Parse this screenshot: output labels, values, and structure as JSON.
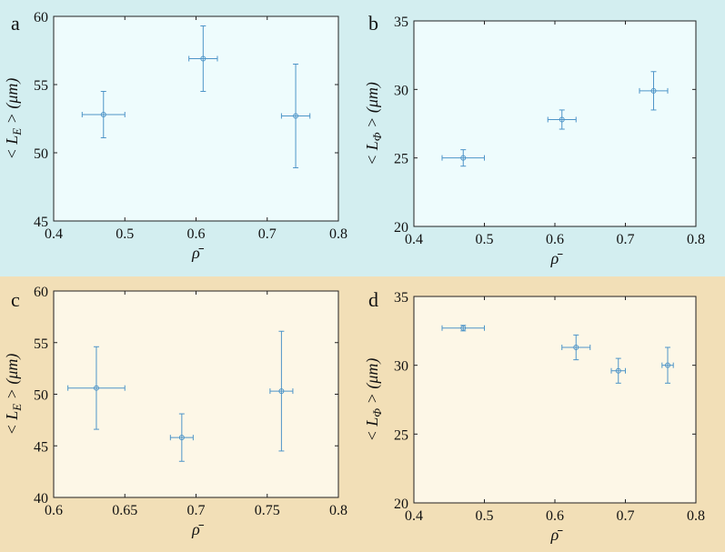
{
  "colors": {
    "top_band": "#d3eef0",
    "bottom_band": "#f2dfb7",
    "plot_bg_top": "#eefcfd",
    "plot_bg_bottom": "#fdf7e7",
    "marker": "#4e95c8",
    "axis": "#222222"
  },
  "chart_data": [
    {
      "type": "scatter",
      "panel_label": "a",
      "xlabel": "ρ̄",
      "ylabel_prefix": "< L",
      "ylabel_sub": "E",
      "ylabel_suffix": " > (μm)",
      "xlim": [
        0.4,
        0.8
      ],
      "ylim": [
        45,
        60
      ],
      "xticks": [
        0.4,
        0.5,
        0.6,
        0.7,
        0.8
      ],
      "yticks": [
        45,
        50,
        55,
        60
      ],
      "xtick_labels": [
        "0.4",
        "0.5",
        "0.6",
        "0.7",
        "0.8"
      ],
      "ytick_labels": [
        "45",
        "50",
        "55",
        "60"
      ],
      "grid": false,
      "series": [
        {
          "points": [
            {
              "x": 0.47,
              "y": 52.8,
              "xerr": 0.03,
              "yerr_low": 1.7,
              "yerr_high": 1.7
            },
            {
              "x": 0.61,
              "y": 56.9,
              "xerr": 0.02,
              "yerr_low": 2.4,
              "yerr_high": 2.4
            },
            {
              "x": 0.74,
              "y": 52.7,
              "xerr": 0.02,
              "yerr_low": 3.8,
              "yerr_high": 3.8
            }
          ]
        }
      ]
    },
    {
      "type": "scatter",
      "panel_label": "b",
      "xlabel": "ρ̄",
      "ylabel_prefix": "< L",
      "ylabel_sub": "Φ",
      "ylabel_suffix": " > (μm)",
      "xlim": [
        0.4,
        0.8
      ],
      "ylim": [
        20,
        35
      ],
      "xticks": [
        0.4,
        0.5,
        0.6,
        0.7,
        0.8
      ],
      "yticks": [
        20,
        25,
        30,
        35
      ],
      "xtick_labels": [
        "0.4",
        "0.5",
        "0.6",
        "0.7",
        "0.8"
      ],
      "ytick_labels": [
        "20",
        "25",
        "30",
        "35"
      ],
      "grid": false,
      "series": [
        {
          "points": [
            {
              "x": 0.47,
              "y": 25.0,
              "xerr": 0.03,
              "yerr_low": 0.6,
              "yerr_high": 0.6
            },
            {
              "x": 0.61,
              "y": 27.8,
              "xerr": 0.02,
              "yerr_low": 0.7,
              "yerr_high": 0.7
            },
            {
              "x": 0.74,
              "y": 29.9,
              "xerr": 0.02,
              "yerr_low": 1.4,
              "yerr_high": 1.4
            }
          ]
        }
      ]
    },
    {
      "type": "scatter",
      "panel_label": "c",
      "xlabel": "ρ̄",
      "ylabel_prefix": "< L",
      "ylabel_sub": "E",
      "ylabel_suffix": " > (μm)",
      "xlim": [
        0.6,
        0.8
      ],
      "ylim": [
        40,
        60
      ],
      "xticks": [
        0.6,
        0.65,
        0.7,
        0.75,
        0.8
      ],
      "yticks": [
        40,
        45,
        50,
        55,
        60
      ],
      "xtick_labels": [
        "0.6",
        "0.65",
        "0.7",
        "0.75",
        "0.8"
      ],
      "ytick_labels": [
        "40",
        "45",
        "50",
        "55",
        "60"
      ],
      "grid": false,
      "series": [
        {
          "points": [
            {
              "x": 0.63,
              "y": 50.6,
              "xerr": 0.02,
              "yerr_low": 4.0,
              "yerr_high": 4.0
            },
            {
              "x": 0.69,
              "y": 45.8,
              "xerr": 0.008,
              "yerr_low": 2.3,
              "yerr_high": 2.3
            },
            {
              "x": 0.76,
              "y": 50.3,
              "xerr": 0.008,
              "yerr_low": 5.8,
              "yerr_high": 5.8
            }
          ]
        }
      ]
    },
    {
      "type": "scatter",
      "panel_label": "d",
      "xlabel": "ρ̄",
      "ylabel_prefix": "< L",
      "ylabel_sub": "Φ",
      "ylabel_suffix": " > (μm)",
      "xlim": [
        0.4,
        0.8
      ],
      "ylim": [
        20,
        35
      ],
      "xticks": [
        0.4,
        0.5,
        0.6,
        0.7,
        0.8
      ],
      "yticks": [
        20,
        25,
        30,
        35
      ],
      "xtick_labels": [
        "0.4",
        "0.5",
        "0.6",
        "0.7",
        "0.8"
      ],
      "ytick_labels": [
        "20",
        "25",
        "30",
        "35"
      ],
      "grid": false,
      "series": [
        {
          "points": [
            {
              "x": 0.47,
              "y": 32.7,
              "xerr": 0.03,
              "yerr_low": 0.2,
              "yerr_high": 0.2
            },
            {
              "x": 0.63,
              "y": 31.3,
              "xerr": 0.02,
              "yerr_low": 0.9,
              "yerr_high": 0.9
            },
            {
              "x": 0.69,
              "y": 29.6,
              "xerr": 0.01,
              "yerr_low": 0.9,
              "yerr_high": 0.9
            },
            {
              "x": 0.76,
              "y": 30.0,
              "xerr": 0.008,
              "yerr_low": 1.3,
              "yerr_high": 1.3
            }
          ]
        }
      ]
    }
  ]
}
